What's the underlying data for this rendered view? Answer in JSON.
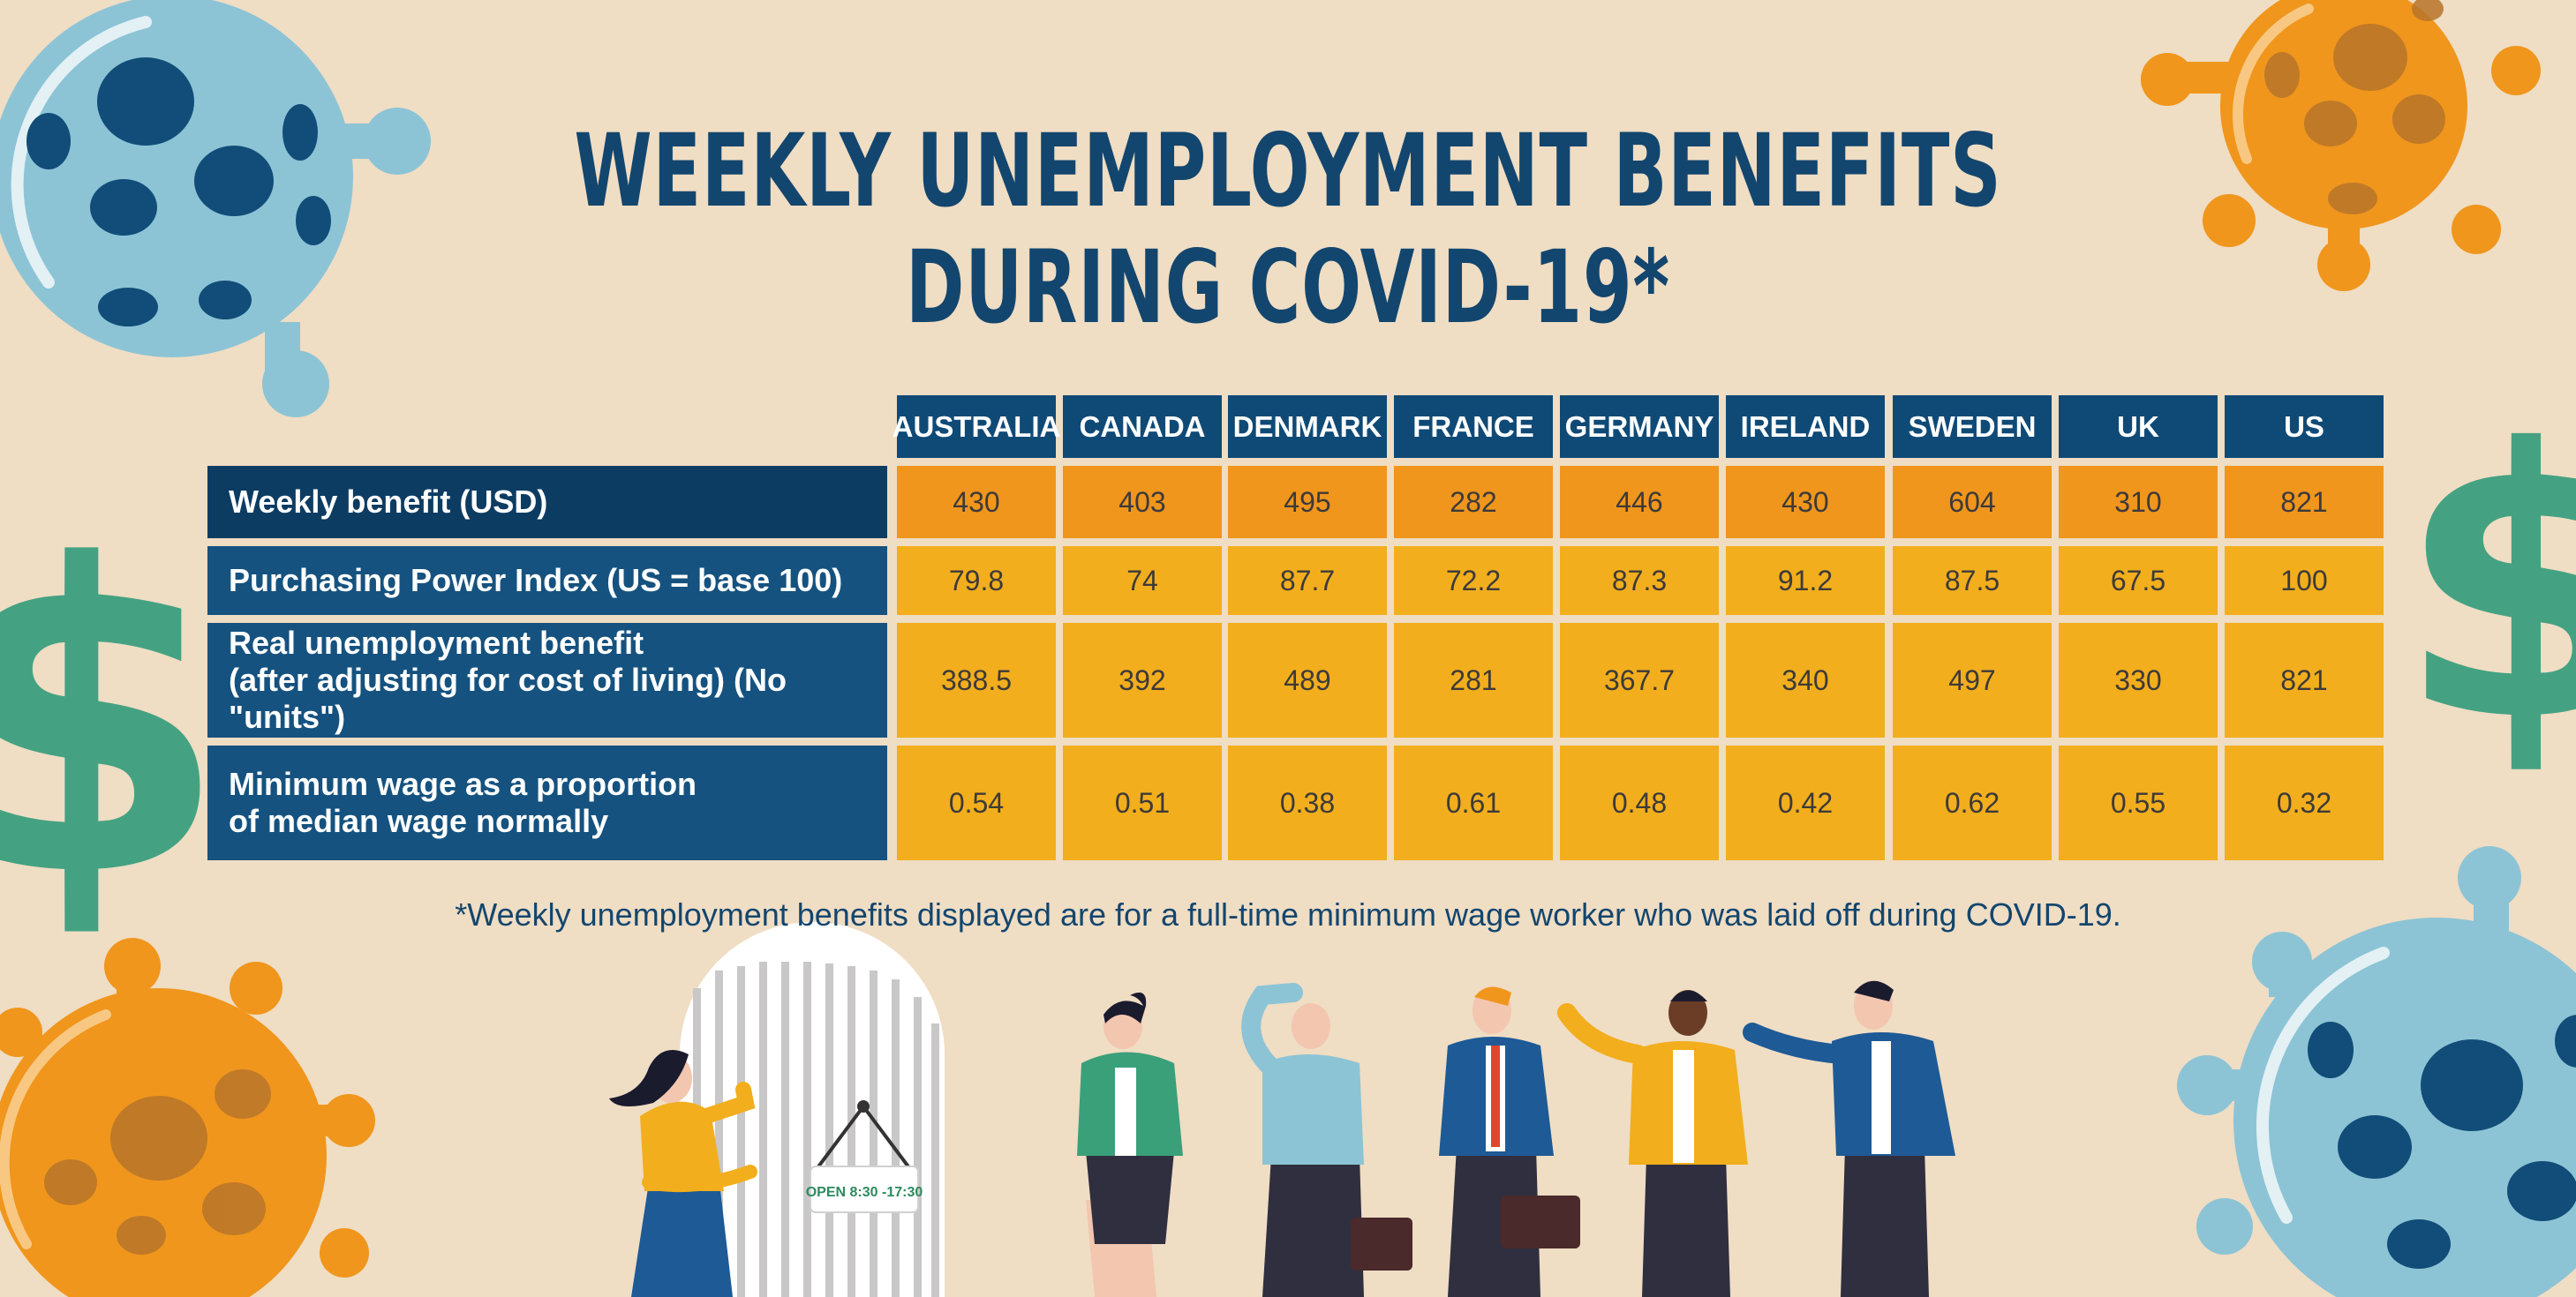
{
  "title_lines": [
    "WEEKLY UNEMPLOYMENT BENEFITS",
    "DURING COVID-19*"
  ],
  "footnote": "*Weekly unemployment benefits displayed are for a full-time minimum wage worker who was laid off during COVID-19.",
  "sign_text": "OPEN 8:30 -17:30",
  "colors": {
    "background": "#efddc4",
    "header_blue": "#0f4a77",
    "row_orange": "#f0961c",
    "row_yellow": "#f2ae1c",
    "title_blue": "#13466e"
  },
  "chart_data": {
    "type": "table",
    "columns": [
      "AUSTRALIA",
      "CANADA",
      "DENMARK",
      "FRANCE",
      "GERMANY",
      "IRELAND",
      "SWEDEN",
      "UK",
      "US"
    ],
    "rows": [
      {
        "label": [
          "Weekly benefit (USD)"
        ],
        "values": [
          "430",
          "403",
          "495",
          "282",
          "446",
          "430",
          "604",
          "310",
          "821"
        ]
      },
      {
        "label": [
          "Purchasing Power Index (US = base 100)"
        ],
        "values": [
          "79.8",
          "74",
          "87.7",
          "72.2",
          "87.3",
          "91.2",
          "87.5",
          "67.5",
          "100"
        ]
      },
      {
        "label": [
          "Real unemployment benefit",
          "(after adjusting for cost of living) (No \"units\")"
        ],
        "values": [
          "388.5",
          "392",
          "489",
          "281",
          "367.7",
          "340",
          "497",
          "330",
          "821"
        ]
      },
      {
        "label": [
          "Minimum wage as a proportion",
          "of median wage normally"
        ],
        "values": [
          "0.54",
          "0.51",
          "0.38",
          "0.61",
          "0.48",
          "0.42",
          "0.62",
          "0.55",
          "0.32"
        ]
      }
    ]
  }
}
